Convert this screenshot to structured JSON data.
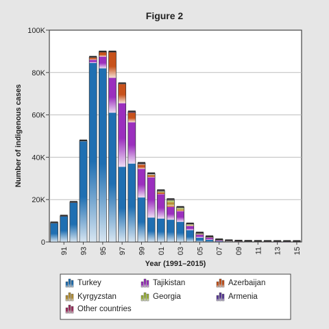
{
  "chart_data": {
    "type": "bar",
    "stacked": true,
    "title": "Figure 2",
    "xlabel": "Year (1991–2015)",
    "ylabel": "Number of indigenous cases",
    "ylim": [
      0,
      100000
    ],
    "y_ticks": [
      0,
      20000,
      40000,
      60000,
      80000,
      100000
    ],
    "y_tick_labels": [
      "0",
      "20K",
      "40K",
      "60K",
      "80K",
      "100K"
    ],
    "x_tick_labels": [
      "91",
      "93",
      "95",
      "97",
      "99",
      "01",
      "03",
      "05",
      "07",
      "09",
      "11",
      "13",
      "15"
    ],
    "categories": [
      "1990",
      "1991",
      "1992",
      "1993",
      "1994",
      "1995",
      "1996",
      "1997",
      "1998",
      "1999",
      "2000",
      "2001",
      "2002",
      "2003",
      "2004",
      "2005",
      "2006",
      "2007",
      "2008",
      "2009",
      "2010",
      "2011",
      "2012",
      "2013",
      "2014",
      "2015"
    ],
    "grid": true,
    "legend_position": "bottom",
    "series": [
      {
        "name": "Turkey",
        "color": "#1f6fb2",
        "values": [
          8800,
          12000,
          18500,
          47500,
          84500,
          82000,
          61000,
          35500,
          37000,
          21000,
          11500,
          11000,
          10500,
          9500,
          5500,
          2000,
          1000,
          300,
          100,
          50,
          30,
          20,
          10,
          5,
          5,
          0
        ]
      },
      {
        "name": "Tajikistan",
        "color": "#9b2fbe",
        "values": [
          0,
          0,
          0,
          0,
          1500,
          5500,
          16500,
          30000,
          19500,
          13500,
          19000,
          11500,
          6000,
          5000,
          2000,
          1500,
          1000,
          400,
          200,
          100,
          50,
          30,
          20,
          10,
          5,
          0
        ]
      },
      {
        "name": "Azerbaijan",
        "color": "#c8521b",
        "values": [
          0,
          0,
          0,
          0,
          1000,
          2000,
          12000,
          9000,
          4500,
          2000,
          1000,
          800,
          500,
          300,
          200,
          100,
          50,
          30,
          20,
          10,
          5,
          5,
          5,
          0,
          0,
          0
        ]
      },
      {
        "name": "Kyrgyzstan",
        "color": "#b89234",
        "values": [
          0,
          0,
          0,
          0,
          0,
          0,
          0,
          0,
          0,
          0,
          0,
          0,
          1800,
          700,
          200,
          100,
          50,
          20,
          10,
          5,
          5,
          0,
          0,
          0,
          0,
          0
        ]
      },
      {
        "name": "Georgia",
        "color": "#9db53b",
        "values": [
          0,
          0,
          0,
          0,
          0,
          0,
          0,
          0,
          0,
          200,
          300,
          500,
          800,
          500,
          300,
          200,
          100,
          50,
          20,
          10,
          5,
          5,
          0,
          0,
          0,
          0
        ]
      },
      {
        "name": "Armenia",
        "color": "#5a3a9a",
        "values": [
          0,
          0,
          0,
          0,
          0,
          0,
          0,
          0,
          200,
          200,
          200,
          200,
          200,
          100,
          100,
          100,
          50,
          20,
          10,
          5,
          5,
          0,
          0,
          0,
          0,
          0
        ]
      },
      {
        "name": "Other countries",
        "color": "#a02c5e",
        "values": [
          300,
          300,
          300,
          300,
          300,
          300,
          300,
          300,
          300,
          300,
          300,
          300,
          300,
          300,
          300,
          300,
          300,
          300,
          300,
          300,
          300,
          300,
          300,
          300,
          300,
          300
        ]
      }
    ]
  }
}
